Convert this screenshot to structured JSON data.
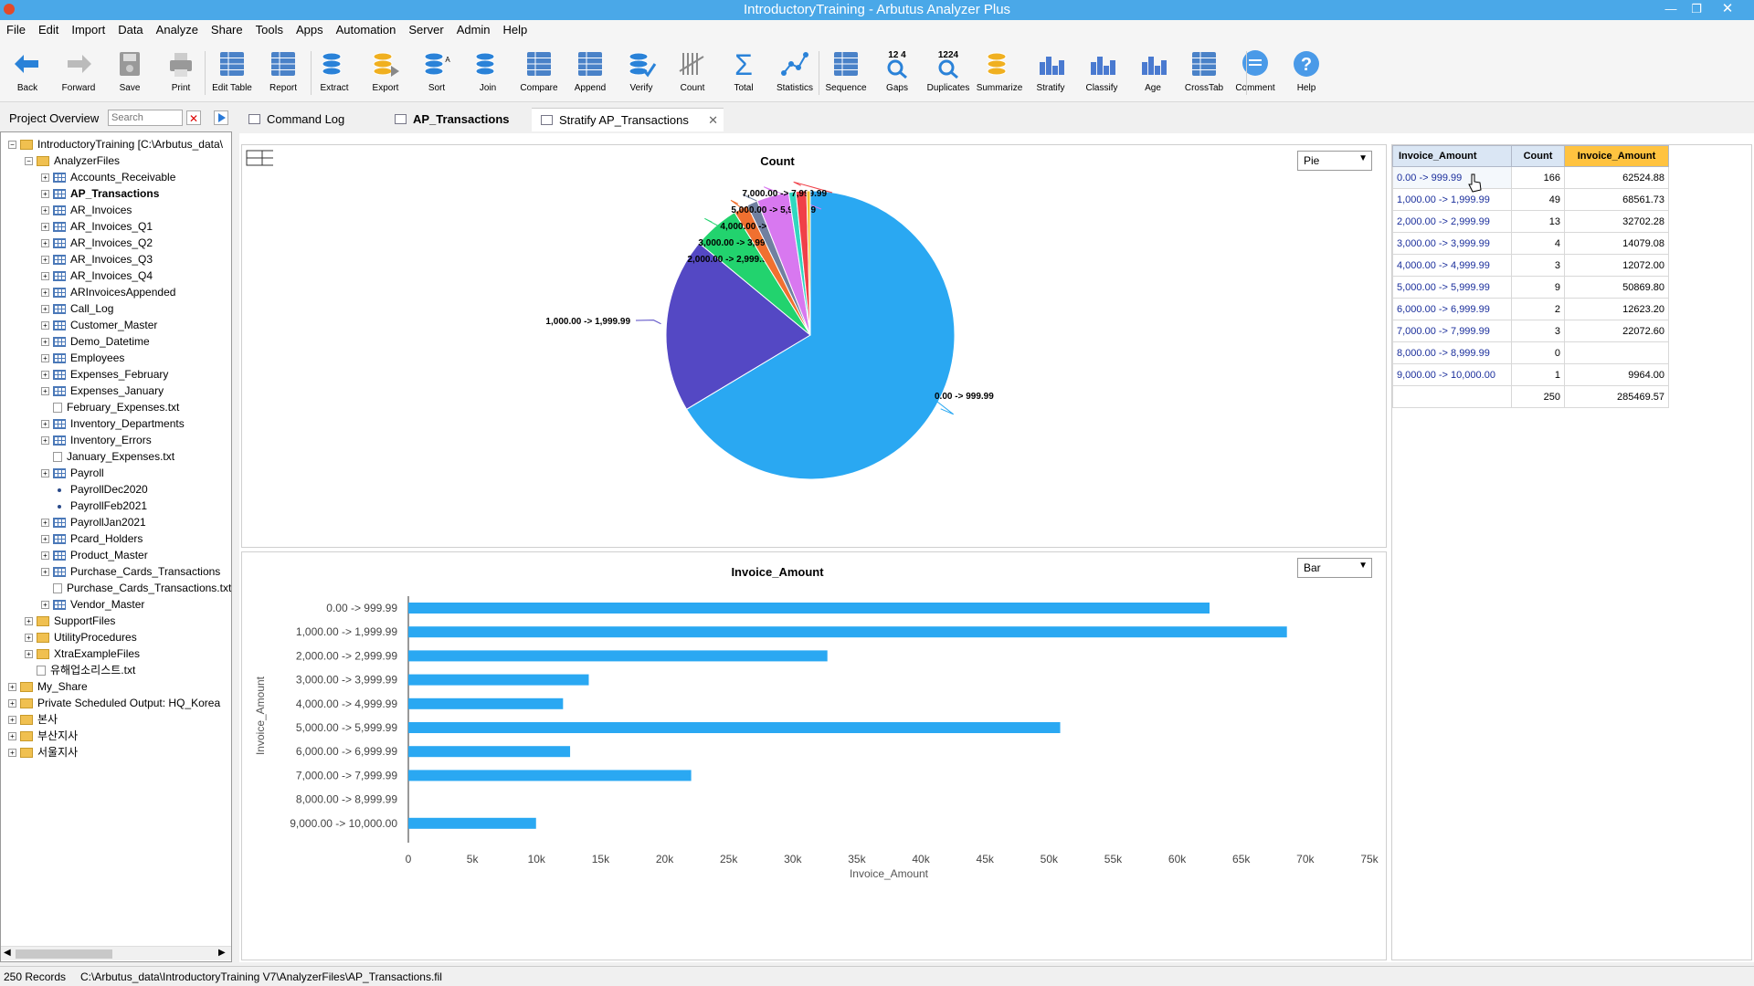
{
  "window": {
    "title": "IntroductoryTraining - Arbutus Analyzer Plus"
  },
  "menu": [
    "File",
    "Edit",
    "Import",
    "Data",
    "Analyze",
    "Share",
    "Tools",
    "Apps",
    "Automation",
    "Server",
    "Admin",
    "Help"
  ],
  "toolbar": [
    {
      "label": "Back",
      "icon": "back-arrow-icon"
    },
    {
      "label": "Forward",
      "icon": "forward-arrow-icon"
    },
    {
      "label": "Save",
      "icon": "save-icon"
    },
    {
      "label": "Print",
      "icon": "print-icon"
    },
    {
      "label": "Edit Table",
      "icon": "edit-table-icon"
    },
    {
      "label": "Report",
      "icon": "report-icon"
    },
    {
      "label": "Extract",
      "icon": "extract-icon"
    },
    {
      "label": "Export",
      "icon": "export-icon"
    },
    {
      "label": "Sort",
      "icon": "sort-icon"
    },
    {
      "label": "Join",
      "icon": "join-icon"
    },
    {
      "label": "Compare",
      "icon": "compare-icon"
    },
    {
      "label": "Append",
      "icon": "append-icon"
    },
    {
      "label": "Verify",
      "icon": "verify-icon"
    },
    {
      "label": "Count",
      "icon": "count-icon"
    },
    {
      "label": "Total",
      "icon": "total-icon"
    },
    {
      "label": "Statistics",
      "icon": "statistics-icon"
    },
    {
      "label": "Sequence",
      "icon": "sequence-icon"
    },
    {
      "label": "Gaps",
      "icon": "gaps-icon",
      "glyph": "12  4"
    },
    {
      "label": "Duplicates",
      "icon": "duplicates-icon",
      "glyph": "1224"
    },
    {
      "label": "Summarize",
      "icon": "summarize-icon"
    },
    {
      "label": "Stratify",
      "icon": "stratify-icon"
    },
    {
      "label": "Classify",
      "icon": "classify-icon"
    },
    {
      "label": "Age",
      "icon": "age-icon"
    },
    {
      "label": "CrossTab",
      "icon": "crosstab-icon"
    },
    {
      "label": "Comment",
      "icon": "comment-icon"
    },
    {
      "label": "Help",
      "icon": "help-icon"
    }
  ],
  "left_panel": {
    "title": "Project Overview",
    "search_placeholder": "Search"
  },
  "tree": [
    {
      "label": "IntroductoryTraining [C:\\Arbutus_data\\",
      "level": 0,
      "icon": "folder"
    },
    {
      "label": "AnalyzerFiles",
      "level": 1,
      "icon": "folder"
    },
    {
      "label": "Accounts_Receivable",
      "level": 2,
      "icon": "table"
    },
    {
      "label": "AP_Transactions",
      "level": 2,
      "icon": "table",
      "bold": true
    },
    {
      "label": "AR_Invoices",
      "level": 2,
      "icon": "table"
    },
    {
      "label": "AR_Invoices_Q1",
      "level": 2,
      "icon": "table"
    },
    {
      "label": "AR_Invoices_Q2",
      "level": 2,
      "icon": "table"
    },
    {
      "label": "AR_Invoices_Q3",
      "level": 2,
      "icon": "table"
    },
    {
      "label": "AR_Invoices_Q4",
      "level": 2,
      "icon": "table"
    },
    {
      "label": "ARInvoicesAppended",
      "level": 2,
      "icon": "table"
    },
    {
      "label": "Call_Log",
      "level": 2,
      "icon": "table"
    },
    {
      "label": "Customer_Master",
      "level": 2,
      "icon": "table"
    },
    {
      "label": "Demo_Datetime",
      "level": 2,
      "icon": "table"
    },
    {
      "label": "Employees",
      "level": 2,
      "icon": "table"
    },
    {
      "label": "Expenses_February",
      "level": 2,
      "icon": "table"
    },
    {
      "label": "Expenses_January",
      "level": 2,
      "icon": "table"
    },
    {
      "label": "February_Expenses.txt",
      "level": 2,
      "icon": "doc"
    },
    {
      "label": "Inventory_Departments",
      "level": 2,
      "icon": "table"
    },
    {
      "label": "Inventory_Errors",
      "level": 2,
      "icon": "table"
    },
    {
      "label": "January_Expenses.txt",
      "level": 2,
      "icon": "doc"
    },
    {
      "label": "Payroll",
      "level": 2,
      "icon": "table"
    },
    {
      "label": "PayrollDec2020",
      "level": 2,
      "icon": "dot"
    },
    {
      "label": "PayrollFeb2021",
      "level": 2,
      "icon": "dot"
    },
    {
      "label": "PayrollJan2021",
      "level": 2,
      "icon": "table"
    },
    {
      "label": "Pcard_Holders",
      "level": 2,
      "icon": "table"
    },
    {
      "label": "Product_Master",
      "level": 2,
      "icon": "table"
    },
    {
      "label": "Purchase_Cards_Transactions",
      "level": 2,
      "icon": "table"
    },
    {
      "label": "Purchase_Cards_Transactions.txt",
      "level": 2,
      "icon": "doc"
    },
    {
      "label": "Vendor_Master",
      "level": 2,
      "icon": "table"
    },
    {
      "label": "SupportFiles",
      "level": 1,
      "icon": "folder"
    },
    {
      "label": "UtilityProcedures",
      "level": 1,
      "icon": "folder"
    },
    {
      "label": "XtraExampleFiles",
      "level": 1,
      "icon": "folder"
    },
    {
      "label": "유해업소리스트.txt",
      "level": 1,
      "icon": "doc"
    },
    {
      "label": "My_Share",
      "level": 0,
      "icon": "folder"
    },
    {
      "label": "Private Scheduled Output:  HQ_Korea",
      "level": 0,
      "icon": "folder"
    },
    {
      "label": "본사",
      "level": 0,
      "icon": "folder"
    },
    {
      "label": "부산지사",
      "level": 0,
      "icon": "folder"
    },
    {
      "label": "서울지사",
      "level": 0,
      "icon": "folder"
    }
  ],
  "tabs": [
    {
      "label": "Command Log"
    },
    {
      "label": "AP_Transactions",
      "bold": true
    },
    {
      "label": "Stratify AP_Transactions",
      "active": true
    }
  ],
  "pie_select": "Pie",
  "bar_select": "Bar",
  "table": {
    "headers": [
      "Invoice_Amount",
      "Count",
      "Invoice_Amount"
    ],
    "rows": [
      [
        "0.00 -> 999.99",
        "166",
        "62524.88"
      ],
      [
        "1,000.00 -> 1,999.99",
        "49",
        "68561.73"
      ],
      [
        "2,000.00 -> 2,999.99",
        "13",
        "32702.28"
      ],
      [
        "3,000.00 -> 3,999.99",
        "4",
        "14079.08"
      ],
      [
        "4,000.00 -> 4,999.99",
        "3",
        "12072.00"
      ],
      [
        "5,000.00 -> 5,999.99",
        "9",
        "50869.80"
      ],
      [
        "6,000.00 -> 6,999.99",
        "2",
        "12623.20"
      ],
      [
        "7,000.00 -> 7,999.99",
        "3",
        "22072.60"
      ],
      [
        "8,000.00 -> 8,999.99",
        "0",
        ""
      ],
      [
        "9,000.00 -> 10,000.00",
        "1",
        "9964.00"
      ]
    ],
    "totals": [
      "",
      "250",
      "285469.57"
    ]
  },
  "chart_data": [
    {
      "type": "pie",
      "title": "Count",
      "categories": [
        "0.00 -> 999.99",
        "1,000.00 -> 1,999.99",
        "2,000.00 -> 2,999.99",
        "3,000.00 -> 3,999.99",
        "4,000.00 -> 4,999.99",
        "5,000.00 -> 5,999.99",
        "6,000.00 -> 6,999.99",
        "7,000.00 -> 7,999.99",
        "8,000.00 -> 8,999.99",
        "9,000.00 -> 10,000.00"
      ],
      "values": [
        166,
        49,
        13,
        4,
        3,
        9,
        2,
        3,
        0,
        1
      ],
      "colors": [
        "#2aa8f2",
        "#5448c4",
        "#22d36e",
        "#f07030",
        "#7080a0",
        "#d878f0",
        "#30d8c0",
        "#f04048",
        "#999999",
        "#f0c030"
      ],
      "labels_shown": [
        "0.00 -> 999.99",
        "1,000.00 -> 1,999.99",
        "2,000.00 -> 2,999.99",
        "3,000.00 -> 3,999.99",
        "4,000.00 -> 4,999.99",
        "5,000.00 -> 5,999.99",
        "7,000.00 -> 7,999.99"
      ]
    },
    {
      "type": "bar",
      "orientation": "horizontal",
      "title": "Invoice_Amount",
      "xlabel": "Invoice_Amount",
      "ylabel": "Invoice_Amount",
      "categories": [
        "0.00 -> 999.99",
        "1,000.00 -> 1,999.99",
        "2,000.00 -> 2,999.99",
        "3,000.00 -> 3,999.99",
        "4,000.00 -> 4,999.99",
        "5,000.00 -> 5,999.99",
        "6,000.00 -> 6,999.99",
        "7,000.00 -> 7,999.99",
        "8,000.00 -> 8,999.99",
        "9,000.00 -> 10,000.00"
      ],
      "values": [
        62524.88,
        68561.73,
        32702.28,
        14079.08,
        12072.0,
        50869.8,
        12623.2,
        22072.6,
        0,
        9964.0
      ],
      "xlim": [
        0,
        75000
      ],
      "xticks": [
        "0",
        "5k",
        "10k",
        "15k",
        "20k",
        "25k",
        "30k",
        "35k",
        "40k",
        "45k",
        "50k",
        "55k",
        "60k",
        "65k",
        "70k",
        "75k"
      ],
      "color": "#2aa8f2"
    }
  ],
  "status": {
    "records": "250 Records",
    "path": "C:\\Arbutus_data\\IntroductoryTraining V7\\AnalyzerFiles\\AP_Transactions.fil"
  }
}
